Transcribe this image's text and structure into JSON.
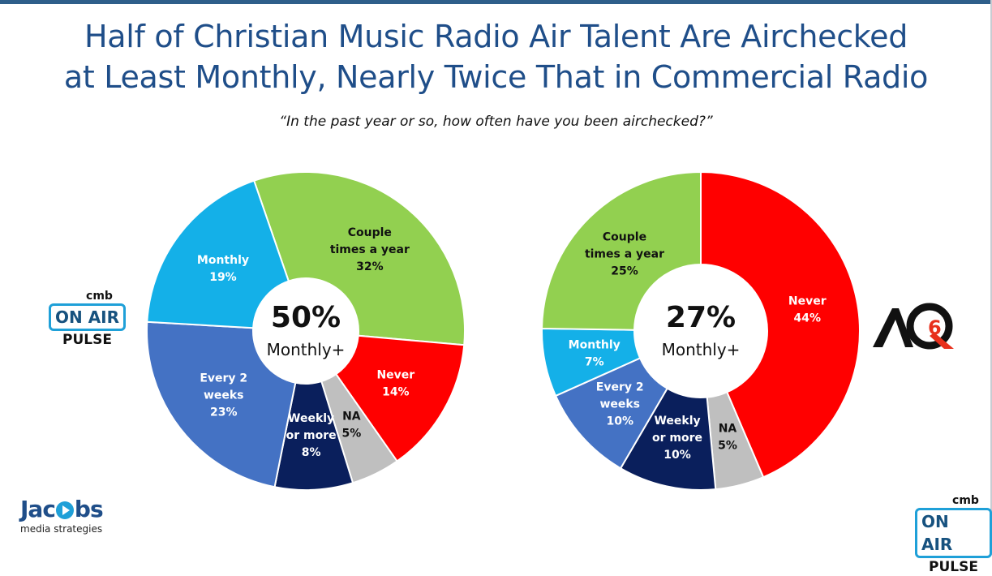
{
  "title_line1": "Half of Christian Music Radio Air Talent Are Airchecked",
  "title_line2": "at Least Monthly, Nearly Twice That in Commercial Radio",
  "subtitle": "“In the past year or so, how often have you been airchecked?”",
  "logos": {
    "left_onair": {
      "cmb": "cmb",
      "box": "ON AIR",
      "pulse": "PULSE"
    },
    "right_onair": {
      "cmb": "cmb",
      "box": "ON AIR",
      "pulse": "PULSE"
    },
    "jacobs": {
      "name_pre": "Jac",
      "name_post": "bs",
      "tagline": "media strategies"
    },
    "aq6_icon": "aq6-logo"
  },
  "colors": {
    "couple": "#92d050",
    "never": "#ff0000",
    "na": "#bfbfbf",
    "weekly": "#0a1f5c",
    "every2": "#4472c4",
    "monthly": "#14b0e8"
  },
  "chart_data": [
    {
      "type": "pie",
      "center": {
        "value": "50%",
        "label": "Monthly+"
      },
      "slices": [
        {
          "label_lines": [
            "Couple",
            "times a year",
            "32%"
          ],
          "value": 32,
          "color_key": "couple"
        },
        {
          "label_lines": [
            "Never",
            "14%"
          ],
          "value": 14,
          "color_key": "never"
        },
        {
          "label_lines": [
            "NA",
            "5%"
          ],
          "value": 5,
          "color_key": "na"
        },
        {
          "label_lines": [
            "Weekly",
            "or more",
            "8%"
          ],
          "value": 8,
          "color_key": "weekly"
        },
        {
          "label_lines": [
            "Every 2",
            "weeks",
            "23%"
          ],
          "value": 23,
          "color_key": "every2"
        },
        {
          "label_lines": [
            "Monthly",
            "19%"
          ],
          "value": 19,
          "color_key": "monthly"
        }
      ]
    },
    {
      "type": "pie",
      "center": {
        "value": "27%",
        "label": "Monthly+"
      },
      "slices": [
        {
          "label_lines": [
            "Never",
            "44%"
          ],
          "value": 44,
          "color_key": "never"
        },
        {
          "label_lines": [
            "NA",
            "5%"
          ],
          "value": 5,
          "color_key": "na"
        },
        {
          "label_lines": [
            "Weekly",
            "or more",
            "10%"
          ],
          "value": 10,
          "color_key": "weekly"
        },
        {
          "label_lines": [
            "Every 2",
            "weeks",
            "10%"
          ],
          "value": 10,
          "color_key": "every2"
        },
        {
          "label_lines": [
            "Monthly",
            "7%"
          ],
          "value": 7,
          "color_key": "monthly"
        },
        {
          "label_lines": [
            "Couple",
            "times a year",
            "25%"
          ],
          "value": 25,
          "color_key": "couple"
        }
      ]
    }
  ]
}
